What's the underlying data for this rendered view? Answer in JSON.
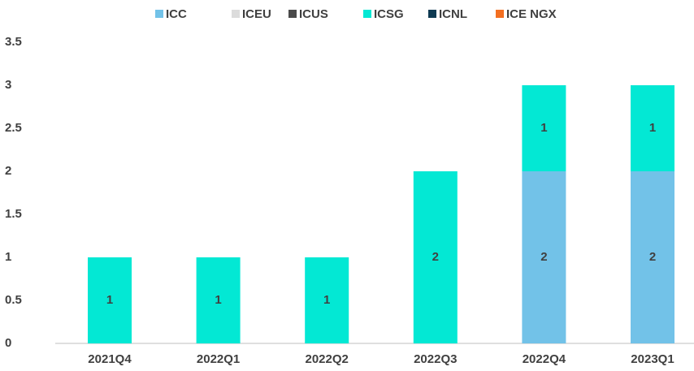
{
  "chart_data": {
    "type": "stacked_bar",
    "categories": [
      "2021Q4",
      "2022Q1",
      "2022Q2",
      "2022Q3",
      "2022Q4",
      "2023Q1"
    ],
    "series": [
      {
        "name": "ICC",
        "color": "#72c2e8",
        "values": [
          0,
          0,
          0,
          0,
          2,
          2
        ]
      },
      {
        "name": "ICEU",
        "color": "#dcdcdc",
        "values": [
          0,
          0,
          0,
          0,
          0,
          0
        ]
      },
      {
        "name": "ICUS",
        "color": "#4a4a4a",
        "values": [
          0,
          0,
          0,
          0,
          0,
          0
        ]
      },
      {
        "name": "ICSG",
        "color": "#03e8d4",
        "values": [
          1,
          1,
          1,
          2,
          1,
          1
        ]
      },
      {
        "name": "ICNL",
        "color": "#0e3a52",
        "values": [
          0,
          0,
          0,
          0,
          0,
          0
        ]
      },
      {
        "name": "ICE NGX",
        "color": "#f36f21",
        "values": [
          0,
          0,
          0,
          0,
          0,
          0
        ]
      }
    ],
    "ylim": [
      0,
      3.5
    ],
    "yticks": [
      0,
      0.5,
      1,
      1.5,
      2,
      2.5,
      3,
      3.5
    ],
    "legend": "top",
    "grid": false
  }
}
